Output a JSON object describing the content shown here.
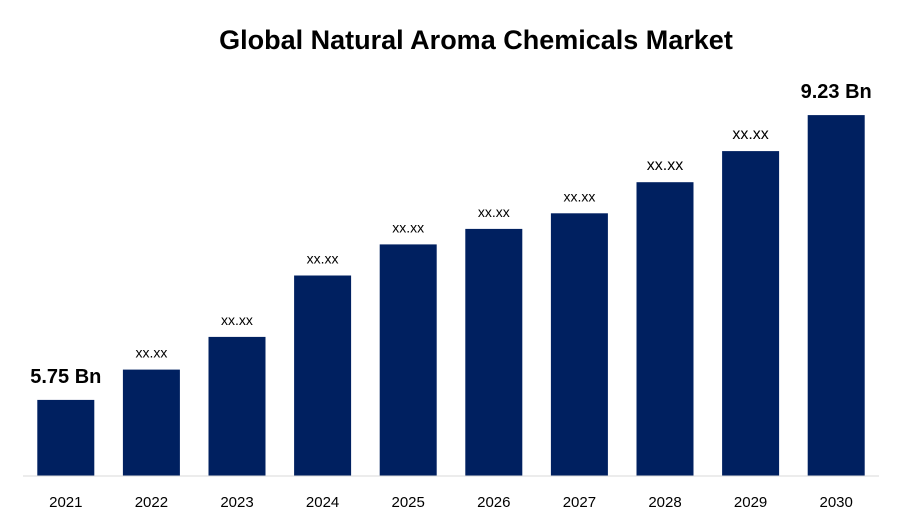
{
  "chart_data": {
    "type": "bar",
    "title": "Global Natural Aroma Chemicals Market",
    "xlabel": "",
    "ylabel": "",
    "categories": [
      "2021",
      "2022",
      "2023",
      "2024",
      "2025",
      "2026",
      "2027",
      "2028",
      "2029",
      "2030"
    ],
    "values": [
      5.75,
      6.12,
      6.52,
      7.27,
      7.65,
      7.84,
      8.03,
      8.41,
      8.79,
      9.23
    ],
    "data_labels": [
      "5.75 Bn",
      "xx.xx",
      "xx.xx",
      "xx.xx",
      "xx.xx",
      "xx.xx",
      "xx.xx",
      "xx.xx",
      "xx.xx",
      "9.23 Bn"
    ],
    "ylim": [
      4.82,
      9.5
    ],
    "grid": false,
    "legend": "none",
    "bar_color": "#002060",
    "axis_color": "#d9d9d9"
  }
}
